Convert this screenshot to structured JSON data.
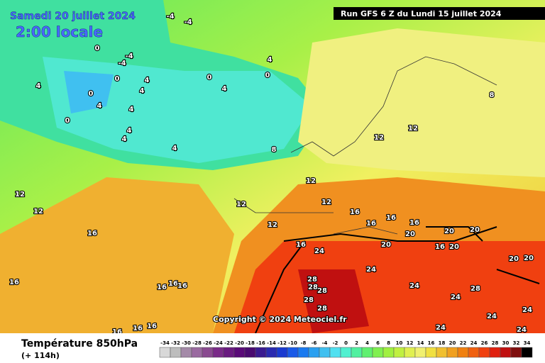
{
  "header": {
    "date": "Samedi 20 juillet 2024",
    "time": "2:00 locale",
    "run": "Run GFS 6 Z du Lundi 15 juillet 2024"
  },
  "copyright": "Copyright © 2024 Meteociel.fr",
  "footer": {
    "title": "Température 850hPa",
    "lead": "(+ 114h)"
  },
  "legend": {
    "values": [
      -34,
      -32,
      -30,
      -28,
      -26,
      -24,
      -22,
      -20,
      -18,
      -16,
      -14,
      -12,
      -10,
      -8,
      -6,
      -4,
      -2,
      0,
      2,
      4,
      6,
      8,
      10,
      12,
      14,
      16,
      18,
      20,
      22,
      24,
      26,
      28,
      30,
      32,
      34
    ],
    "colors": [
      "#d8d8d8",
      "#bdbdbd",
      "#a48aa8",
      "#9a6aa0",
      "#8a4a90",
      "#7a2a88",
      "#6a1a80",
      "#5a0a78",
      "#4a0a70",
      "#3a1a90",
      "#2a2ab0",
      "#1a3ad0",
      "#1a5ae8",
      "#1a7af0",
      "#2aa0f0",
      "#40c0f0",
      "#50e0f0",
      "#50f0d0",
      "#50f0a0",
      "#60f070",
      "#80f050",
      "#a0f040",
      "#c0f040",
      "#e0f050",
      "#f0f070",
      "#f0e040",
      "#f0c030",
      "#f0a020",
      "#f08010",
      "#f06010",
      "#f04010",
      "#e02010",
      "#c01010",
      "#801010",
      "#000000"
    ]
  },
  "map": {
    "contour_labels": [
      -4,
      -4,
      0,
      -4,
      -4,
      0,
      4,
      4,
      0,
      4,
      4,
      4,
      4,
      4,
      0,
      4,
      0,
      4,
      8,
      12,
      12,
      8,
      12,
      12,
      12,
      12,
      16,
      16,
      16,
      16,
      20,
      20,
      20,
      16,
      20,
      20,
      24,
      16,
      24,
      24,
      28,
      28,
      28,
      28,
      28,
      28,
      24,
      24,
      24,
      24,
      24,
      20,
      20,
      16,
      16,
      16,
      16,
      16,
      16,
      16,
      16,
      12,
      12,
      4,
      0
    ]
  }
}
